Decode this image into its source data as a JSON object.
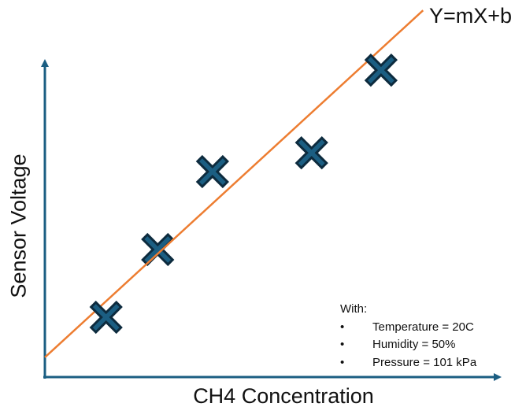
{
  "chart_data": {
    "type": "scatter",
    "title": "",
    "xlabel": "CH4 Concentration",
    "ylabel": "Sensor Voltage",
    "xlim": [
      0,
      100
    ],
    "ylim": [
      0,
      100
    ],
    "grid": false,
    "ticks": false,
    "series": [
      {
        "name": "Measurements",
        "marker": "x",
        "color": "#1b5e82",
        "edge_color": "#0d2b3e",
        "x": [
          13.4,
          24.7,
          36.7,
          58.4,
          73.6
        ],
        "y": [
          18.8,
          40.1,
          64.6,
          70.5,
          96.5
        ]
      },
      {
        "name": "Linear fit",
        "type": "line",
        "color": "#ed7d31",
        "x": [
          0,
          82.8
        ],
        "y": [
          6.2,
          115.3
        ]
      }
    ],
    "annotations": [
      {
        "text": "Y=mX+b",
        "position": "top-right, at end of fit line"
      }
    ],
    "conditions_box": {
      "header": "With:",
      "items": [
        "Temperature = 20C",
        "Humidity = 50%",
        "Pressure = 101 kPa"
      ]
    }
  },
  "colors": {
    "axis": "#1b5e82",
    "marker_fill": "#1b5e82",
    "marker_edge": "#0d2b3e",
    "fit_line": "#ed7d31"
  },
  "labels": {
    "equation": "Y=mX+b",
    "x_axis": "CH4 Concentration",
    "y_axis": "Sensor Voltage",
    "notes_header": "With:",
    "bullet": "•",
    "notes": [
      "Temperature = 20C",
      "Humidity = 50%",
      "Pressure = 101 kPa"
    ]
  }
}
